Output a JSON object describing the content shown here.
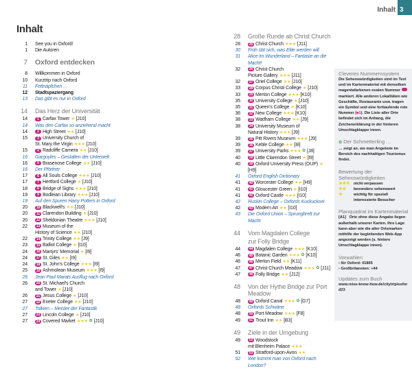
{
  "header": {
    "label": "Inhalt",
    "page": "3",
    "accent": "#2d7d8a"
  },
  "title": "Inhalt",
  "colors": {
    "badge": "#c8247d",
    "stars": "#e6cf3a",
    "italic": "#2f6ea8",
    "heading": "#7a7a7a"
  },
  "left": [
    {
      "p": "1",
      "t": "See you in Oxford!"
    },
    {
      "p": "1",
      "t": "Die Autoren"
    },
    {
      "p": "7",
      "t": "Oxford entdecken",
      "k": "h1"
    },
    {
      "p": "8",
      "t": "Willkommen in Oxford"
    },
    {
      "p": "10",
      "t": "Kurztrip nach Oxford"
    },
    {
      "p": "11",
      "t": "Fettnäpfchen …",
      "k": "i"
    },
    {
      "p": "12",
      "t": "Stadtspaziergang",
      "k": "b"
    },
    {
      "p": "13",
      "t": "Das gibt es nur in Oxford",
      "k": "i"
    },
    {
      "p": "14",
      "t": "Das Herz der Universität",
      "k": "h"
    },
    {
      "p": "14",
      "n": "1",
      "t": "Carfax Tower",
      "s": 1,
      "g": "[J10]"
    },
    {
      "p": "14",
      "t": "Was den Carfax so anziehend macht",
      "k": "i"
    },
    {
      "p": "14",
      "n": "2",
      "t": "High Street",
      "s": 2,
      "g": "[J10]"
    },
    {
      "p": "15",
      "n": "3",
      "t": "University Church of",
      "t2": "St. Mary the Virgin",
      "s": 3,
      "g": "[J10]"
    },
    {
      "p": "15",
      "n": "4",
      "t": "Radcliffe Camera",
      "s": 2,
      "g": "[J10]"
    },
    {
      "p": "16",
      "t": "Gargoyles – Gestalten der Unterwelt",
      "k": "i"
    },
    {
      "p": "16",
      "n": "5",
      "t": "Brasenose College",
      "s": 2,
      "g": "[J10]"
    },
    {
      "p": "16",
      "t": "Der Pförtner",
      "k": "i"
    },
    {
      "p": "17",
      "n": "6",
      "t": "All Souls College",
      "s": 3,
      "g": "[J10]"
    },
    {
      "p": "17",
      "n": "7",
      "t": "Hertford College",
      "s": 1,
      "g": "[J10]"
    },
    {
      "p": "18",
      "n": "8",
      "t": "Bridge of Sighs",
      "s": 3,
      "g": "[J10]"
    },
    {
      "p": "19",
      "n": "9",
      "t": "Bodleian Library",
      "s": 3,
      "g": "[J10]"
    },
    {
      "p": "19",
      "t": "Auf den Spuren Harry Potters in Oxford",
      "k": "i"
    },
    {
      "p": "20",
      "n": "10",
      "t": "Blackwell's",
      "s": 2,
      "g": "[J10]"
    },
    {
      "p": "20",
      "n": "11",
      "t": "Clarendon Building",
      "s": 1,
      "g": "[J10]"
    },
    {
      "p": "20",
      "n": "12",
      "t": "Sheldonian Theatre",
      "s": 3,
      "g": "[J10]"
    },
    {
      "p": "22",
      "n": "13",
      "t": "Museum of the",
      "t2": "History of Science",
      "s": 2,
      "g": "[J10]"
    },
    {
      "p": "22",
      "n": "14",
      "t": "Trinity College",
      "s": 2,
      "g": "[J9]"
    },
    {
      "p": "23",
      "n": "15",
      "t": "Balliol College",
      "s": 1,
      "g": "[I10]"
    },
    {
      "p": "24",
      "n": "16",
      "t": "Martyrs' Memorial",
      "s": 1,
      "g": "[I9]"
    },
    {
      "p": "24",
      "n": "17",
      "t": "St. Giles",
      "s": 2,
      "g": "[I9]"
    },
    {
      "p": "24",
      "n": "18",
      "t": "St. John's College",
      "s": 3,
      "g": "[I9]"
    },
    {
      "p": "25",
      "n": "19",
      "t": "Ashmolean Museum",
      "s": 3,
      "g": "[I9]"
    },
    {
      "p": "26",
      "t": "Jean Paul Marats Ausflug nach Oxford",
      "k": "i"
    },
    {
      "p": "26",
      "n": "20",
      "t": "St. Michael's Church",
      "t2": "and Tower",
      "s": 1,
      "g": "[J10]"
    },
    {
      "p": "26",
      "n": "21",
      "t": "Jesus College",
      "s": 1,
      "g": "[J10]"
    },
    {
      "p": "27",
      "n": "22",
      "t": "Exeter College",
      "s": 2,
      "g": "[J10]"
    },
    {
      "p": "27",
      "t": "Tolkien – Meister der Fantastik",
      "k": "i"
    },
    {
      "p": "27",
      "n": "23",
      "t": "Lincoln College",
      "s": 1,
      "g": "[J10]"
    },
    {
      "p": "27",
      "n": "24",
      "t": "Covered Market",
      "s": 3,
      "e": true,
      "g": "[J10]"
    }
  ],
  "mid": [
    {
      "p": "28",
      "t": "Große Runde ab Christ Church",
      "k": "h"
    },
    {
      "p": "28",
      "n": "25",
      "t": "Christ Church",
      "s": 3,
      "g": "[J11]"
    },
    {
      "p": "30",
      "t": "Früh übt sich, was Elite werden will",
      "k": "i"
    },
    {
      "p": "31",
      "t": "Alice im Wunderland – Fantasie an die Macht!",
      "k": "i"
    },
    {
      "p": "32",
      "n": "26",
      "t": "Christ Church",
      "t2": "Picture Gallery",
      "s": 3,
      "g": "[J11]"
    },
    {
      "p": "32",
      "n": "27",
      "t": "Oriel College",
      "s": 2,
      "g": "[J10]"
    },
    {
      "p": "33",
      "n": "28",
      "t": "Corpus Christi College",
      "s": 1,
      "g": "[J10]"
    },
    {
      "p": "33",
      "n": "29",
      "t": "Merton College",
      "s": 3,
      "g": "[K10]"
    },
    {
      "p": "35",
      "n": "30",
      "t": "University College",
      "s": 1,
      "g": "[J10]"
    },
    {
      "p": "35",
      "n": "31",
      "t": "Queen's College",
      "s": 1,
      "g": "[K10]"
    },
    {
      "p": "36",
      "n": "32",
      "t": "New College",
      "s": 3,
      "g": "[K10]"
    },
    {
      "p": "38",
      "n": "33",
      "t": "Wadham College",
      "s": 2,
      "g": "[J9]"
    },
    {
      "p": "38",
      "n": "34",
      "t": "University Museum of",
      "t2": "Natural History",
      "s": 3,
      "g": "[J9]"
    },
    {
      "p": "39",
      "n": "35",
      "t": "Pitt Rivers Museum",
      "s": 3,
      "g": "[J9]"
    },
    {
      "p": "39",
      "n": "36",
      "t": "Keble College",
      "s": 2,
      "g": "[I8]"
    },
    {
      "p": "39",
      "n": "37",
      "t": "University Parks",
      "s": 3,
      "e": true,
      "g": "[J8]"
    },
    {
      "p": "40",
      "n": "38",
      "t": "Little Clarendon Street",
      "s": 1,
      "g": "[I9]"
    },
    {
      "p": "40",
      "n": "39",
      "t": "Oxford University Press (OUP)",
      "s": 1,
      "g": "[H9]"
    },
    {
      "p": "41",
      "t": "Oxford English Dictionary",
      "k": "i"
    },
    {
      "p": "41",
      "n": "40",
      "t": "Worcester College",
      "s": 2,
      "g": "[H9]"
    },
    {
      "p": "41",
      "n": "41",
      "t": "Gloucester Green",
      "s": 1,
      "g": "[I10]"
    },
    {
      "p": "41",
      "n": "42",
      "t": "Oxford Castle",
      "s": 3,
      "g": "[I10]"
    },
    {
      "p": "42",
      "t": "Ruskin College – Oxfords Kuckucksei",
      "k": "i"
    },
    {
      "p": "42",
      "n": "43",
      "t": "Modern Art",
      "s": 2,
      "g": "[I10]"
    },
    {
      "p": "43",
      "t": "Die Oxford Union – Sprungbrett zur Macht",
      "k": "i"
    },
    {
      "p": "44",
      "t": "Vom Magdalen College",
      "t2": "zur Folly Bridge",
      "k": "h"
    },
    {
      "p": "44",
      "n": "44",
      "t": "Magdalen College",
      "s": 3,
      "g": "[K10]"
    },
    {
      "p": "46",
      "n": "45",
      "t": "Botanic Garden",
      "s": 3,
      "e": true,
      "g": "[K10]"
    },
    {
      "p": "46",
      "n": "46",
      "t": "Merton Field",
      "s": 2,
      "g": "[K11]"
    },
    {
      "p": "47",
      "n": "47",
      "t": "Christ Church Meadow",
      "s": 3,
      "e": true,
      "g": "[J11]"
    },
    {
      "p": "47",
      "n": "48",
      "t": "Folly Bridge",
      "s": 2,
      "g": "[J12]"
    },
    {
      "p": "48",
      "t": "Von der Hythe Bridge zur Port Meadow",
      "k": "h"
    },
    {
      "p": "48",
      "n": "49",
      "t": "Oxford Canal",
      "s": 3,
      "e": true,
      "g": "[G7]"
    },
    {
      "p": "48",
      "t": "Oxfords Schwäne",
      "k": "i"
    },
    {
      "p": "48",
      "n": "50",
      "t": "Port Meadow",
      "s": 3,
      "g": "[F8]"
    },
    {
      "p": "49",
      "n": "51",
      "t": "Trout Inn",
      "s": 2,
      "g": "[B3]"
    },
    {
      "p": "49",
      "t": "Ziele in der Umgebung",
      "k": "h"
    },
    {
      "p": "49",
      "n": "52",
      "t": "Woodstock",
      "t2": "mit Blenheim Palace",
      "s": 3
    },
    {
      "p": "51",
      "n": "53",
      "t": "Stratford-upon-Avon",
      "s": 2
    },
    {
      "p": "52",
      "t": "Wie kommt man von Oxford nach London?",
      "k": "i"
    }
  ],
  "sidebar": {
    "numbering": {
      "title": "Cleveres Nummernsystem",
      "text1": "Die Sehenswürdigkeiten sind im Text und im Kartenmaterial mit denselben magentafarbenen ovalen Nummer",
      "text2": "markiert. Alle anderen Lokalitäten wie Geschäfte, Restaurants usw. tragen ein Symbol und eine fortlaufende rote Nummer (",
      "text3": "). Die Liste aller Orte befindet sich im Anhang, die Zeichenerklärung in der hinteren Umschlagklappe innen."
    },
    "butterfly": {
      "title": "Der Schmetterling …",
      "text": "… zeigt an, wo man Angebote im Bereich des nachhaltigen Tourismus findet."
    },
    "rating": {
      "title": "Bewertung der Sehenswürdigkeiten",
      "items": [
        {
          "s": 3,
          "label": "nicht verpassen"
        },
        {
          "s": 2,
          "label": "besonders sehenswert"
        },
        {
          "s": 1,
          "label": "wichtig für speziell interessierte Besucher"
        }
      ]
    },
    "grid": {
      "title": "Planquadrat im Kartenmaterial",
      "code": "[A1]",
      "text": "Orte ohne diese Angabe liegen außerhalb unserer Karten. Ihre Lage kann aber wie die aller Ortsmarken mithilfe der begleitenden Web-App angezeigt werden (s. hintere Umschlagklappe innen)."
    },
    "dial": {
      "title": "Vorwahlen",
      "items": [
        "für Oxford: 01865",
        "Großbritannien: +44"
      ]
    },
    "updates": {
      "title": "Updates zum Buch",
      "url": "www.reise-know-how.de/citytrip/oxford23"
    }
  }
}
